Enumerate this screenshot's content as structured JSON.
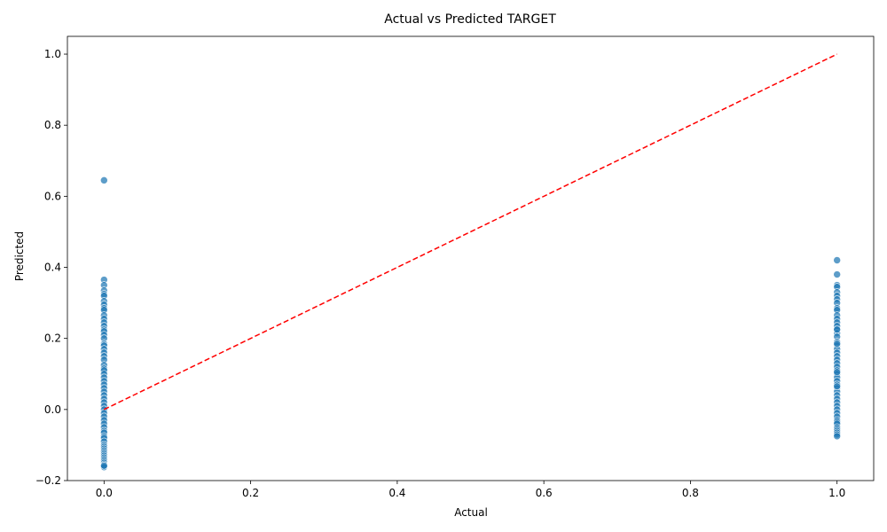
{
  "chart_data": {
    "type": "scatter",
    "title": "Actual vs Predicted TARGET",
    "xlabel": "Actual",
    "ylabel": "Predicted",
    "xlim": [
      -0.05,
      1.05
    ],
    "ylim": [
      -0.2,
      1.05
    ],
    "xticks": [
      0.0,
      0.2,
      0.4,
      0.6,
      0.8,
      1.0
    ],
    "yticks": [
      -0.2,
      0.0,
      0.2,
      0.4,
      0.6,
      0.8,
      1.0
    ],
    "xtick_labels": [
      "0.0",
      "0.2",
      "0.4",
      "0.6",
      "0.8",
      "1.0"
    ],
    "ytick_labels": [
      "−0.2",
      "0.0",
      "0.2",
      "0.4",
      "0.6",
      "0.8",
      "1.0"
    ],
    "grid": false,
    "colors": {
      "points": "#1f77b4",
      "reference_line": "#ff0000"
    },
    "reference_line": {
      "x": [
        0,
        1
      ],
      "y": [
        0,
        1
      ],
      "style": "dashed"
    },
    "series": [
      {
        "x": [
          0,
          0,
          0,
          0,
          0,
          0,
          0,
          0,
          0,
          0,
          0,
          0,
          0,
          0,
          0,
          0,
          0,
          0,
          0,
          0,
          0,
          0,
          0,
          0,
          0,
          0,
          0,
          0,
          0,
          0,
          0,
          0,
          0,
          0,
          0,
          0,
          0,
          0,
          0,
          0,
          0,
          0,
          0,
          0,
          0,
          0,
          0,
          0,
          0,
          0,
          0,
          0,
          0,
          0,
          0,
          0,
          0,
          0,
          0,
          0,
          0,
          0,
          0
        ],
        "y": [
          0.645,
          0.365,
          0.35,
          0.335,
          0.325,
          0.32,
          0.305,
          0.295,
          0.285,
          0.28,
          0.265,
          0.255,
          0.245,
          0.235,
          0.225,
          0.22,
          0.21,
          0.2,
          0.185,
          0.18,
          0.17,
          0.16,
          0.15,
          0.14,
          0.125,
          0.115,
          0.11,
          0.1,
          0.09,
          0.08,
          0.07,
          0.06,
          0.05,
          0.04,
          0.03,
          0.02,
          0.01,
          0.0,
          -0.01,
          -0.02,
          -0.03,
          -0.04,
          -0.05,
          -0.06,
          -0.065,
          -0.075,
          -0.08,
          -0.09,
          -0.1,
          -0.105,
          -0.11,
          -0.115,
          -0.12,
          -0.125,
          -0.13,
          -0.135,
          -0.14,
          -0.145,
          -0.15,
          -0.155,
          -0.16,
          -0.162,
          -0.158
        ]
      },
      {
        "x": [
          1,
          1,
          1,
          1,
          1,
          1,
          1,
          1,
          1,
          1,
          1,
          1,
          1,
          1,
          1,
          1,
          1,
          1,
          1,
          1,
          1,
          1,
          1,
          1,
          1,
          1,
          1,
          1,
          1,
          1,
          1,
          1,
          1,
          1,
          1,
          1,
          1,
          1,
          1,
          1,
          1,
          1,
          1,
          1,
          1,
          1,
          1,
          1,
          1,
          1,
          1,
          1
        ],
        "y": [
          0.42,
          0.38,
          0.35,
          0.345,
          0.33,
          0.32,
          0.31,
          0.3,
          0.285,
          0.28,
          0.265,
          0.255,
          0.245,
          0.235,
          0.225,
          0.215,
          0.205,
          0.19,
          0.18,
          0.17,
          0.16,
          0.15,
          0.14,
          0.13,
          0.12,
          0.11,
          0.1,
          0.09,
          0.08,
          0.07,
          0.06,
          0.05,
          0.04,
          0.03,
          0.02,
          0.01,
          0.0,
          -0.01,
          -0.02,
          -0.03,
          -0.035,
          -0.04,
          -0.05,
          -0.055,
          -0.06,
          -0.065,
          -0.07,
          -0.075,
          0.105,
          0.065,
          0.185,
          0.225
        ]
      }
    ]
  }
}
